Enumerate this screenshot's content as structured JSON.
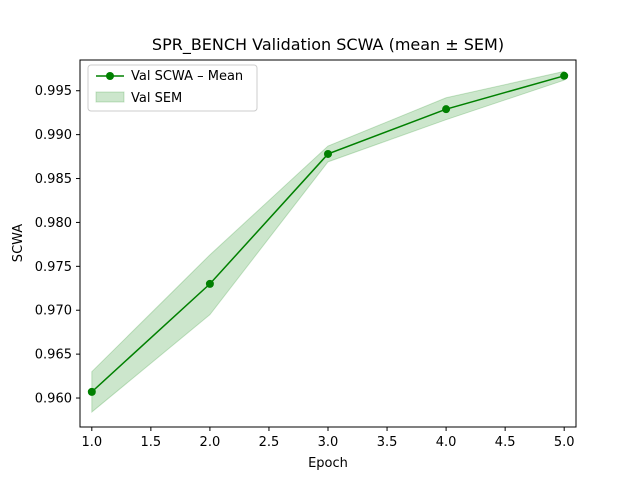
{
  "chart_data": {
    "type": "line",
    "title": "SPR_BENCH Validation SCWA (mean ± SEM)",
    "xlabel": "Epoch",
    "ylabel": "SCWA",
    "xlim": [
      0.9,
      5.1
    ],
    "ylim": [
      0.9567,
      0.9985
    ],
    "x_ticks": [
      1.0,
      1.5,
      2.0,
      2.5,
      3.0,
      3.5,
      4.0,
      4.5,
      5.0
    ],
    "x_tick_labels": [
      "1.0",
      "1.5",
      "2.0",
      "2.5",
      "3.0",
      "3.5",
      "4.0",
      "4.5",
      "5.0"
    ],
    "y_ticks": [
      0.96,
      0.965,
      0.97,
      0.975,
      0.98,
      0.985,
      0.99,
      0.995
    ],
    "y_tick_labels": [
      "0.960",
      "0.965",
      "0.970",
      "0.975",
      "0.980",
      "0.985",
      "0.990",
      "0.995"
    ],
    "grid": false,
    "legend_position": "upper-left",
    "series": [
      {
        "name": "Val SCWA – Mean",
        "color": "#008000",
        "marker": "circle",
        "x": [
          1,
          2,
          3,
          4,
          5
        ],
        "y": [
          0.9607,
          0.973,
          0.9878,
          0.9929,
          0.9967
        ]
      }
    ],
    "bands": [
      {
        "name": "Val SEM",
        "color": "#008000",
        "opacity": 0.2,
        "x": [
          1,
          2,
          3,
          4,
          5
        ],
        "lower": [
          0.9584,
          0.9695,
          0.9869,
          0.9917,
          0.9962
        ],
        "upper": [
          0.963,
          0.9763,
          0.9887,
          0.9942,
          0.9972
        ]
      }
    ]
  }
}
